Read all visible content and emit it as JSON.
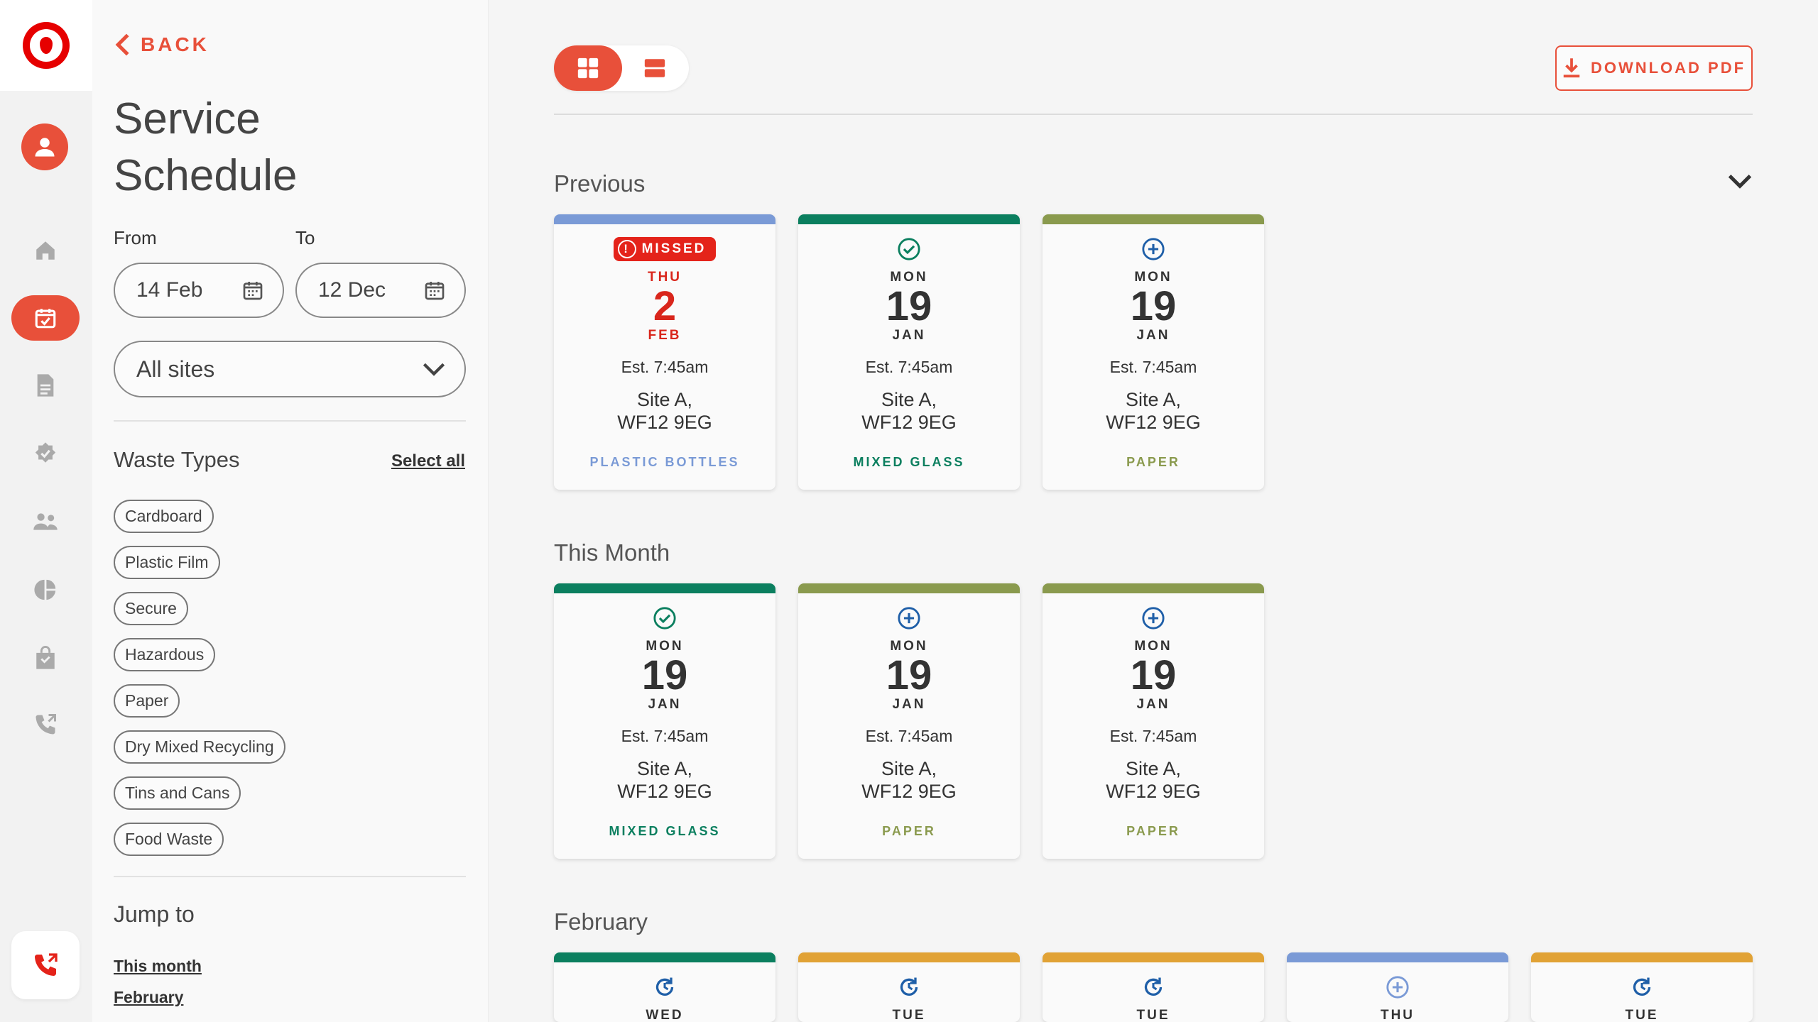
{
  "colors": {
    "brand": "#e60000",
    "accent": "#e8503a",
    "plastic": "#7a9ad6",
    "glass": "#0b7f5f",
    "paper": "#8a9a4e",
    "orange": "#e1a235",
    "missed": "#e4231a"
  },
  "nav": {
    "items": [
      "home-icon",
      "calendar-icon",
      "document-icon",
      "badge-icon",
      "people-icon",
      "pie-chart-icon",
      "bag-icon",
      "phone-icon"
    ],
    "active": "calendar-icon"
  },
  "panel": {
    "back_label": "BACK",
    "title": "Service Schedule",
    "from_label": "From",
    "to_label": "To",
    "from_value": "14 Feb",
    "to_value": "12 Dec",
    "site_select": "All sites",
    "waste_types_title": "Waste Types",
    "select_all": "Select all",
    "chips": [
      "Cardboard",
      "Plastic Film",
      "Secure",
      "Hazardous",
      "Paper",
      "Dry Mixed Recycling",
      "Tins and Cans",
      "Food Waste"
    ],
    "jump_title": "Jump to",
    "jump_links": [
      "This month",
      "February"
    ]
  },
  "toolbar": {
    "download_label": "DOWNLOAD PDF"
  },
  "sections": {
    "previous": {
      "title": "Previous",
      "cards": [
        {
          "status": "missed",
          "missed_label": "MISSED",
          "dow": "THU",
          "day": "2",
          "mon": "FEB",
          "est": "Est. 7:45am",
          "site1": "Site A,",
          "site2": "WF12 9EG",
          "wtype": "PLASTIC BOTTLES"
        },
        {
          "status": "done",
          "dow": "MON",
          "day": "19",
          "mon": "JAN",
          "est": "Est. 7:45am",
          "site1": "Site A,",
          "site2": "WF12 9EG",
          "wtype": "MIXED GLASS"
        },
        {
          "status": "added",
          "dow": "MON",
          "day": "19",
          "mon": "JAN",
          "est": "Est. 7:45am",
          "site1": "Site A,",
          "site2": "WF12 9EG",
          "wtype": "PAPER"
        }
      ]
    },
    "this_month": {
      "title": "This Month",
      "cards": [
        {
          "status": "done",
          "dow": "MON",
          "day": "19",
          "mon": "JAN",
          "est": "Est. 7:45am",
          "site1": "Site A,",
          "site2": "WF12 9EG",
          "wtype": "MIXED GLASS"
        },
        {
          "status": "added",
          "dow": "MON",
          "day": "19",
          "mon": "JAN",
          "est": "Est. 7:45am",
          "site1": "Site A,",
          "site2": "WF12 9EG",
          "wtype": "PAPER"
        },
        {
          "status": "added",
          "dow": "MON",
          "day": "19",
          "mon": "JAN",
          "est": "Est. 7:45am",
          "site1": "Site A,",
          "site2": "WF12 9EG",
          "wtype": "PAPER"
        }
      ]
    },
    "february": {
      "title": "February",
      "cards": [
        {
          "status": "recurring",
          "dow": "WED"
        },
        {
          "status": "recurring",
          "dow": "TUE"
        },
        {
          "status": "recurring",
          "dow": "TUE"
        },
        {
          "status": "added",
          "dow": "THU"
        },
        {
          "status": "recurring",
          "dow": "TUE"
        }
      ]
    }
  }
}
